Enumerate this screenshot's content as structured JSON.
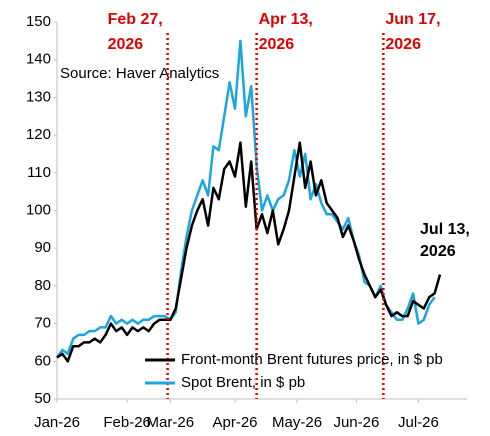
{
  "chart_data": {
    "type": "line",
    "source": "Source: Haver Analytics",
    "x": [
      0,
      2,
      4,
      6,
      8,
      10,
      12,
      14,
      16,
      18,
      20,
      22,
      24,
      26,
      28,
      30,
      32,
      34,
      36,
      38,
      40,
      42,
      44,
      46,
      48,
      50,
      52,
      54,
      56,
      58,
      60,
      62,
      64,
      66,
      68,
      70,
      72,
      74,
      76,
      78,
      80,
      82,
      84,
      86,
      88,
      90,
      92,
      94,
      96,
      98,
      100,
      102,
      104,
      106,
      108,
      110,
      112,
      114,
      116,
      118,
      120,
      122,
      124,
      126,
      128,
      130,
      132,
      134,
      136,
      138,
      140,
      142
    ],
    "xlim": [
      0,
      152
    ],
    "xticks": [
      {
        "value": 0,
        "label": "Jan-26"
      },
      {
        "value": 26,
        "label": "Feb-26"
      },
      {
        "value": 42,
        "label": "Mar-26"
      },
      {
        "value": 66,
        "label": "Apr-26"
      },
      {
        "value": 89,
        "label": "May-26"
      },
      {
        "value": 111,
        "label": "Jun-26"
      },
      {
        "value": 134,
        "label": "Jul-26"
      }
    ],
    "ylim": [
      50,
      150
    ],
    "yticks": [
      50,
      60,
      70,
      80,
      90,
      100,
      110,
      120,
      130,
      140,
      150
    ],
    "grid": false,
    "legend": "lower right",
    "series": [
      {
        "name": "Front-month Brent futures price, in $ pb",
        "color": "#000000",
        "values": [
          61,
          62,
          60,
          64,
          64,
          65,
          65,
          66,
          65,
          67,
          70,
          68,
          69,
          67,
          69,
          68,
          69,
          68,
          70,
          71,
          71,
          71,
          74,
          82,
          90,
          96,
          100,
          103,
          96,
          106,
          103,
          111,
          113,
          109,
          118,
          101,
          113,
          95,
          99,
          94,
          100,
          91,
          95,
          100,
          109,
          118,
          106,
          113,
          104,
          108,
          102,
          100,
          98,
          93,
          96,
          92,
          87,
          83,
          80,
          77,
          79,
          75,
          72,
          73,
          72,
          72,
          76,
          75,
          74,
          77,
          78,
          83
        ]
      },
      {
        "name": "Spot Brent, in $ pb",
        "color": "#1aa7e0",
        "values": [
          61,
          63,
          62,
          66,
          67,
          67,
          68,
          68,
          69,
          69,
          72,
          70,
          71,
          70,
          71,
          70,
          71,
          71,
          72,
          72,
          72,
          71,
          73,
          84,
          93,
          100,
          104,
          108,
          104,
          117,
          116,
          125,
          134,
          127,
          145,
          125,
          133,
          112,
          100,
          104,
          100,
          103,
          104,
          108,
          116,
          109,
          115,
          103,
          107,
          102,
          99,
          99,
          97,
          95,
          98,
          92,
          88,
          81,
          80,
          77,
          80,
          75,
          73,
          71,
          71,
          74,
          78,
          70,
          71,
          75,
          77,
          null
        ]
      }
    ],
    "events": [
      {
        "x": 41,
        "color": "#e00000",
        "label_lines": [
          "Feb 27,",
          "2026"
        ]
      },
      {
        "x": 74,
        "color": "#e00000",
        "label_lines": [
          "Apr 13,",
          "2026"
        ]
      },
      {
        "x": 121,
        "color": "#e00000",
        "label_lines": [
          "Jun 17,",
          "2026"
        ]
      }
    ],
    "annotations": [
      {
        "label_lines": [
          "Jul 13,",
          "2026"
        ]
      }
    ]
  }
}
